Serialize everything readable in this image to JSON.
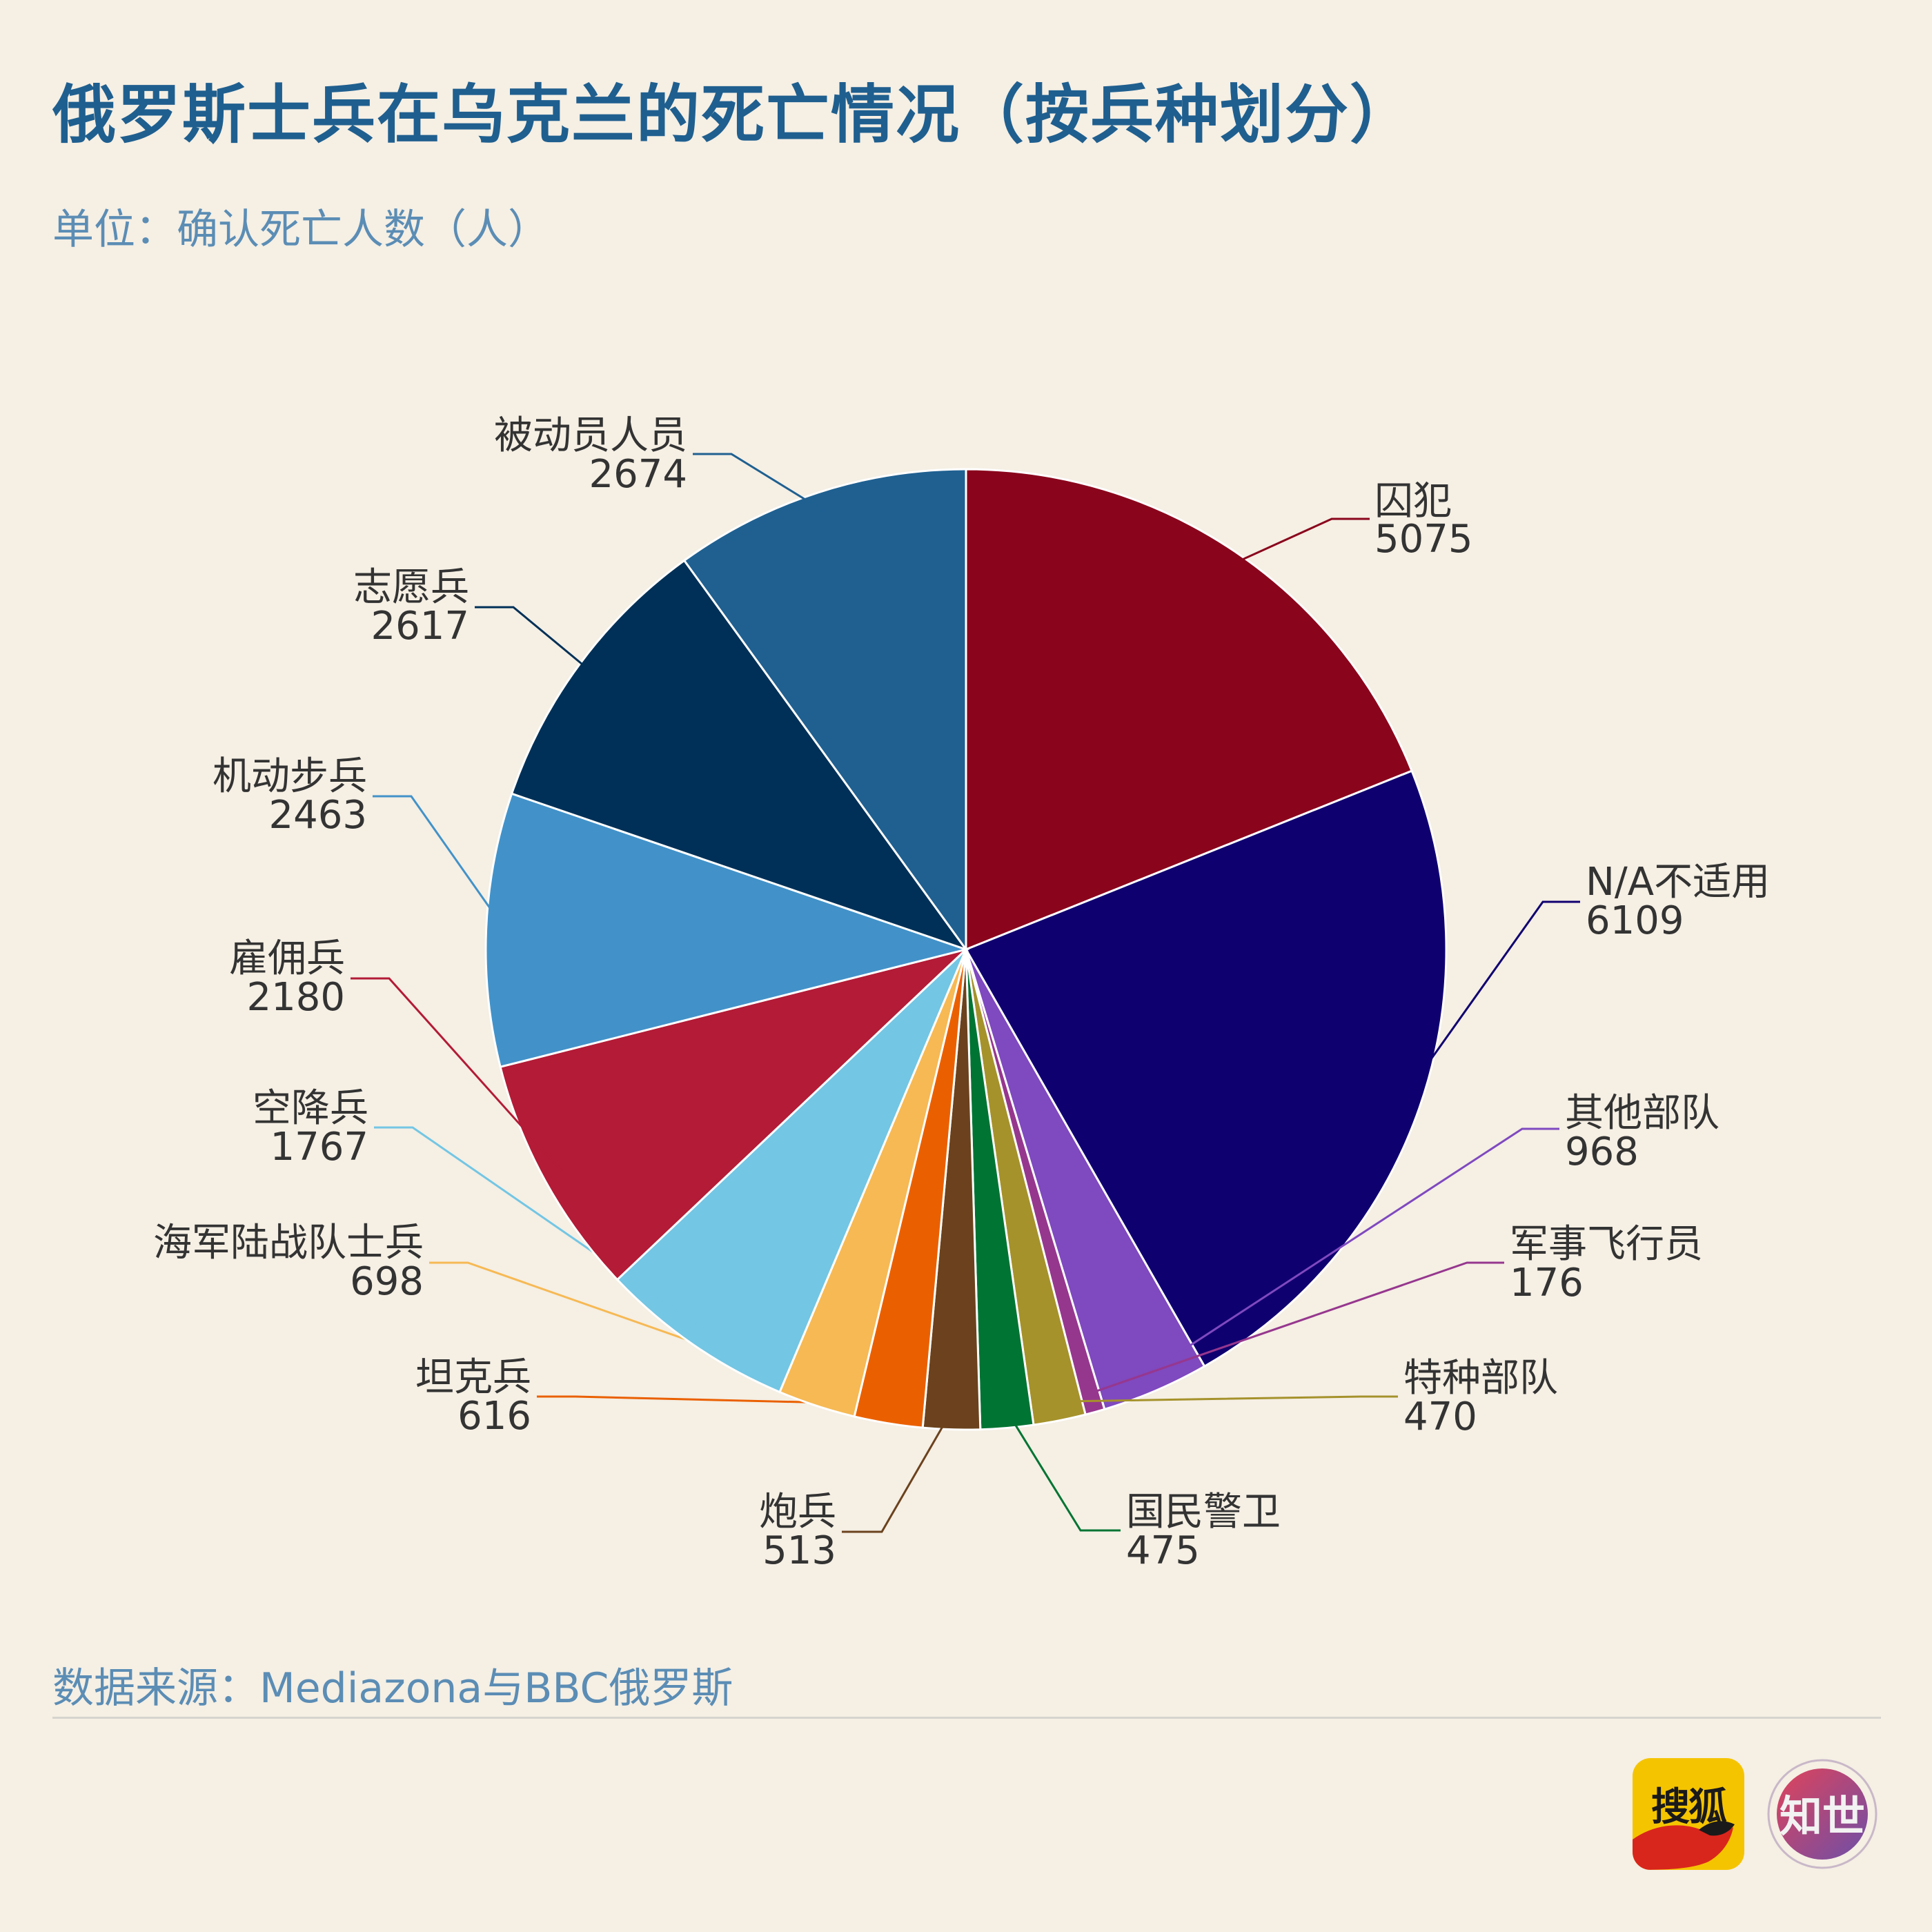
{
  "title": "俄罗斯士兵在乌克兰的死亡情况（按兵种划分）",
  "subtitle": "单位：确认死亡人数（人）",
  "source": "数据来源：Mediazona与BBC俄罗斯",
  "logos": {
    "sohu": "搜狐",
    "zhishi": "知世"
  },
  "chart_data": {
    "type": "pie",
    "start": "12 o'clock, clockwise",
    "slices": [
      {
        "label": "囚犯",
        "value": 5075,
        "color": "#8a051c"
      },
      {
        "label": "N/A不适用",
        "value": 6109,
        "color": "#0f0070"
      },
      {
        "label": "其他部队",
        "value": 968,
        "color": "#7f49bf"
      },
      {
        "label": "军事飞行员",
        "value": 176,
        "color": "#96378e"
      },
      {
        "label": "特种部队",
        "value": 470,
        "color": "#a5922b"
      },
      {
        "label": "国民警卫",
        "value": 475,
        "color": "#007433"
      },
      {
        "label": "炮兵",
        "value": 513,
        "color": "#6b421d"
      },
      {
        "label": "坦克兵",
        "value": 616,
        "color": "#ea6000"
      },
      {
        "label": "海军陆战队士兵",
        "value": 698,
        "color": "#f6b954"
      },
      {
        "label": "空降兵",
        "value": 1767,
        "color": "#73c6e4"
      },
      {
        "label": "雇佣兵",
        "value": 2180,
        "color": "#b31b36"
      },
      {
        "label": "机动步兵",
        "value": 2463,
        "color": "#4292c9"
      },
      {
        "label": "志愿兵",
        "value": 2617,
        "color": "#003057"
      },
      {
        "label": "被动员人员",
        "value": 2674,
        "color": "#1f6091"
      }
    ]
  }
}
